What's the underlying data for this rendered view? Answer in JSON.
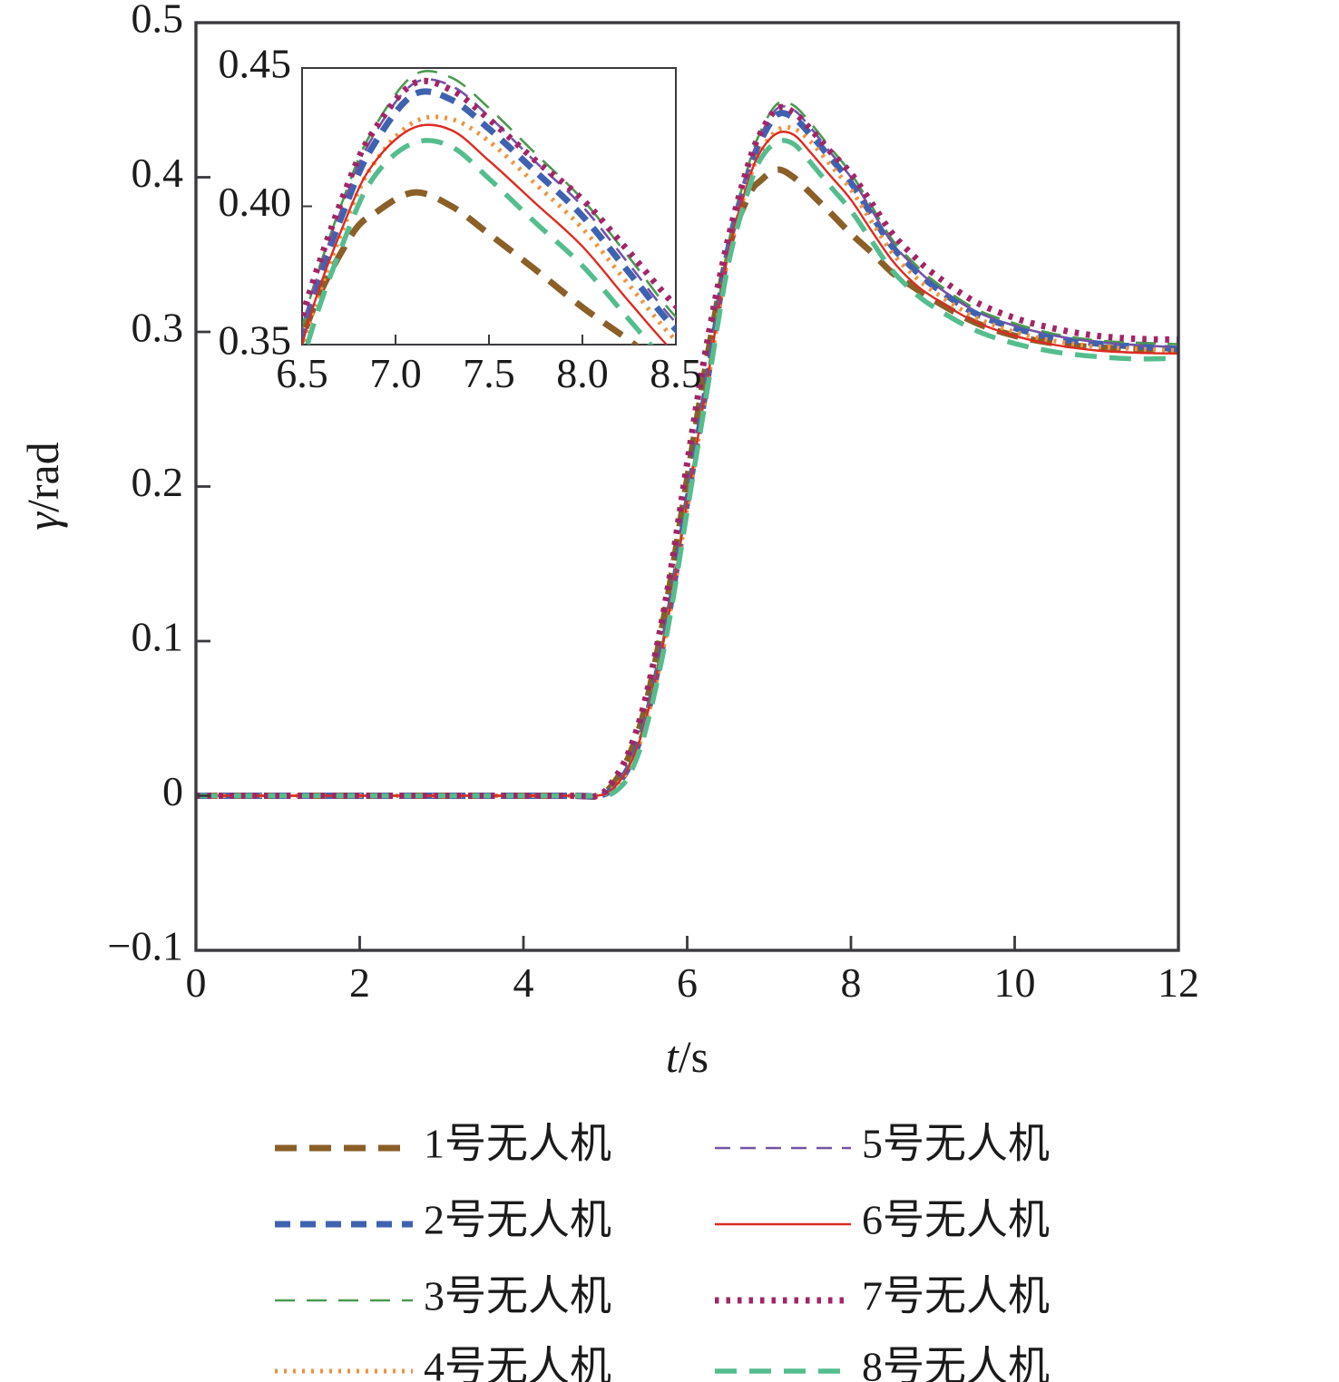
{
  "figure": {
    "background": "#ffffff",
    "frame_color": "#3a3a3e",
    "text_color": "#1b1b1b"
  },
  "chart_data": {
    "type": "line",
    "title": "",
    "xlabel_symbol": "t",
    "xlabel_unit": "/s",
    "ylabel_symbol": "γ",
    "ylabel_unit": "/rad",
    "xlim": [
      0,
      12
    ],
    "ylim": [
      -0.1,
      0.5
    ],
    "xticks": [
      0,
      2,
      4,
      6,
      8,
      10,
      12
    ],
    "xtick_labels": [
      "0",
      "2",
      "4",
      "6",
      "8",
      "10",
      "12"
    ],
    "yticks": [
      0.5,
      0.4,
      0.3,
      0.2,
      0.1,
      0,
      -0.1
    ],
    "ytick_labels": [
      "0.5",
      "0.4",
      "0.3",
      "0.2",
      "0.1",
      "0",
      "−0.1"
    ],
    "grid": false,
    "legend_position": "bottom",
    "x": [
      0,
      2.5,
      4.5,
      4.9,
      5.1,
      5.3,
      5.5,
      5.75,
      6.0,
      6.25,
      6.5,
      6.75,
      6.9,
      7.1,
      7.3,
      7.5,
      7.75,
      8.0,
      8.25,
      8.5,
      8.75,
      9.0,
      9.5,
      10.0,
      10.5,
      11.0,
      11.5,
      12.0
    ],
    "series": [
      {
        "name": "1号无人机",
        "color": "#8a5f28",
        "width": 7,
        "dash": "24 14",
        "values": [
          0,
          0,
          0,
          0,
          0.008,
          0.027,
          0.06,
          0.125,
          0.205,
          0.285,
          0.352,
          0.388,
          0.398,
          0.405,
          0.4,
          0.39,
          0.377,
          0.3635,
          0.3515,
          0.3385,
          0.3295,
          0.321,
          0.3065,
          0.2975,
          0.2925,
          0.29,
          0.289,
          0.2885
        ]
      },
      {
        "name": "2号无人机",
        "color": "#3f62b0",
        "width": 7,
        "dash": "17 11",
        "values": [
          0,
          0,
          0,
          0,
          0.005,
          0.02,
          0.05,
          0.11,
          0.19,
          0.27,
          0.353,
          0.403,
          0.424,
          0.4405,
          0.4385,
          0.428,
          0.4125,
          0.3965,
          0.376,
          0.3555,
          0.3415,
          0.33,
          0.3125,
          0.3025,
          0.296,
          0.2925,
          0.2905,
          0.289
        ]
      },
      {
        "name": "3号无人机",
        "color": "#4a9a4f",
        "width": 2.6,
        "dash": "22 13",
        "values": [
          0,
          0,
          0,
          0,
          0.005,
          0.021,
          0.052,
          0.113,
          0.193,
          0.273,
          0.356,
          0.408,
          0.43,
          0.4475,
          0.4465,
          0.4355,
          0.419,
          0.4025,
          0.3815,
          0.36,
          0.3455,
          0.3335,
          0.3155,
          0.3055,
          0.2985,
          0.2945,
          0.293,
          0.292
        ]
      },
      {
        "name": "4号无人机",
        "color": "#f0923f",
        "width": 5,
        "dash": "3 7",
        "values": [
          0,
          0,
          0,
          0,
          0.005,
          0.019,
          0.048,
          0.107,
          0.187,
          0.267,
          0.348,
          0.397,
          0.417,
          0.4305,
          0.4315,
          0.4235,
          0.408,
          0.392,
          0.3715,
          0.3515,
          0.3375,
          0.3265,
          0.31,
          0.3,
          0.294,
          0.2905,
          0.289,
          0.288
        ]
      },
      {
        "name": "5号无人机",
        "color": "#7353a6",
        "width": 2.6,
        "dash": "17 11",
        "values": [
          0,
          0,
          0,
          0,
          0.005,
          0.0205,
          0.051,
          0.112,
          0.192,
          0.272,
          0.355,
          0.406,
          0.4275,
          0.4445,
          0.4435,
          0.4325,
          0.416,
          0.4,
          0.379,
          0.358,
          0.3435,
          0.3315,
          0.314,
          0.304,
          0.2975,
          0.2935,
          0.2915,
          0.29
        ]
      },
      {
        "name": "6号无人机",
        "color": "#dd2b22",
        "width": 2.4,
        "dash": "",
        "values": [
          0,
          0,
          0,
          0,
          0.005,
          0.02,
          0.05,
          0.11,
          0.19,
          0.27,
          0.35,
          0.398,
          0.417,
          0.4285,
          0.4275,
          0.4165,
          0.401,
          0.3855,
          0.3655,
          0.3465,
          0.3325,
          0.3225,
          0.307,
          0.2975,
          0.2915,
          0.288,
          0.2865,
          0.286
        ]
      },
      {
        "name": "7号无人机",
        "color": "#a12567",
        "width": 7,
        "dash": "4.5 8",
        "values": [
          0,
          0,
          0,
          0,
          0.01,
          0.03,
          0.065,
          0.13,
          0.215,
          0.295,
          0.36,
          0.409,
          0.429,
          0.4445,
          0.442,
          0.4315,
          0.4165,
          0.4025,
          0.3835,
          0.364,
          0.35,
          0.338,
          0.32,
          0.309,
          0.302,
          0.2975,
          0.2955,
          0.295
        ]
      },
      {
        "name": "8号无人机",
        "color": "#54bd8e",
        "width": 5.5,
        "dash": "24 14",
        "values": [
          0,
          0,
          0,
          0,
          0.002,
          0.014,
          0.044,
          0.104,
          0.184,
          0.264,
          0.343,
          0.392,
          0.412,
          0.423,
          0.4215,
          0.41,
          0.394,
          0.3785,
          0.359,
          0.34,
          0.3265,
          0.3165,
          0.3015,
          0.2925,
          0.287,
          0.284,
          0.2825,
          0.283
        ]
      }
    ],
    "draw_order": [
      0,
      1,
      2,
      3,
      4,
      5,
      7,
      6
    ],
    "inset": {
      "xlim": [
        6.5,
        8.5
      ],
      "ylim": [
        0.35,
        0.45
      ],
      "xticks": [
        6.5,
        7.0,
        7.5,
        8.0,
        8.5
      ],
      "xtick_labels": [
        "6.5",
        "7.0",
        "7.5",
        "8.0",
        "8.5"
      ],
      "yticks": [
        0.45,
        0.4,
        0.35
      ],
      "ytick_labels": [
        "0.45",
        "0.40",
        "0.35"
      ],
      "inner_xticks": [
        7.0,
        7.5,
        8.0
      ],
      "inner_yticks": [
        0.4
      ]
    }
  },
  "legend": {
    "columns": 2,
    "rows": 4
  }
}
